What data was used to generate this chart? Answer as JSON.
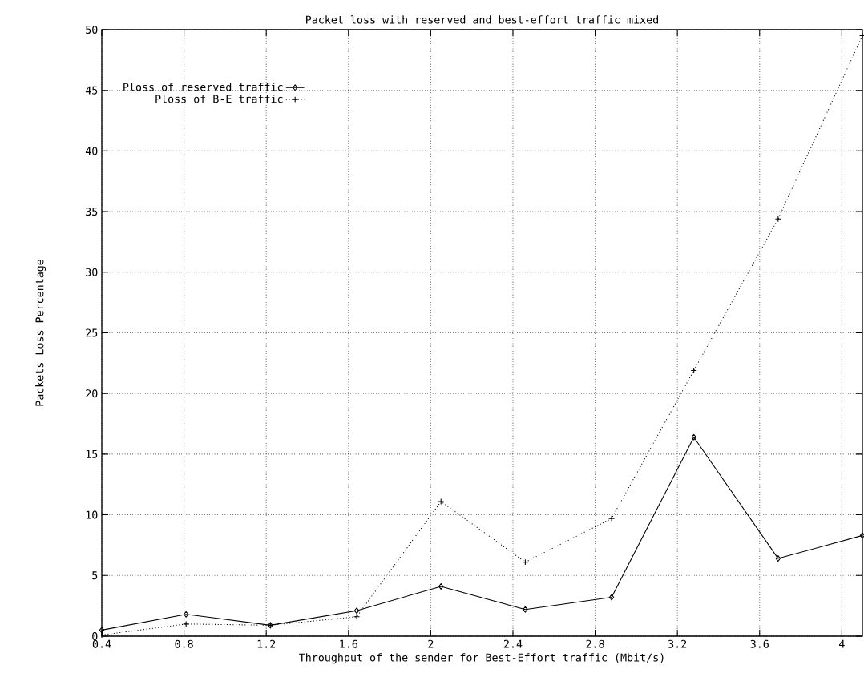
{
  "chart_data": {
    "type": "line",
    "title": "Packet loss with reserved and best-effort traffic mixed",
    "xlabel": "Throughput of the sender for Best-Effort traffic (Mbit/s)",
    "ylabel": "Packets Loss Percentage",
    "x": [
      0.4,
      0.81,
      1.22,
      1.64,
      2.05,
      2.46,
      2.88,
      3.28,
      3.69,
      4.1
    ],
    "series": [
      {
        "name": "Ploss of reserved traffic",
        "color": "#000000",
        "marker": "diamond",
        "line_style": "solid",
        "values": [
          0.5,
          1.8,
          0.9,
          2.1,
          4.1,
          2.2,
          3.2,
          16.4,
          6.4,
          8.3
        ]
      },
      {
        "name": "Ploss of B-E  traffic",
        "color": "#000000",
        "marker": "cross",
        "line_style": "dotted",
        "values": [
          0.1,
          1.0,
          0.9,
          1.6,
          11.1,
          6.1,
          9.7,
          21.9,
          34.4,
          49.5
        ]
      }
    ],
    "xlim": [
      0.4,
      4.1
    ],
    "ylim": [
      0,
      50
    ],
    "xticks": [
      0.4,
      0.8,
      1.2,
      1.6,
      2,
      2.4,
      2.8,
      3.2,
      3.6,
      4
    ],
    "yticks": [
      0,
      5,
      10,
      15,
      20,
      25,
      30,
      35,
      40,
      45,
      50
    ],
    "grid": true,
    "legend": "top left"
  }
}
